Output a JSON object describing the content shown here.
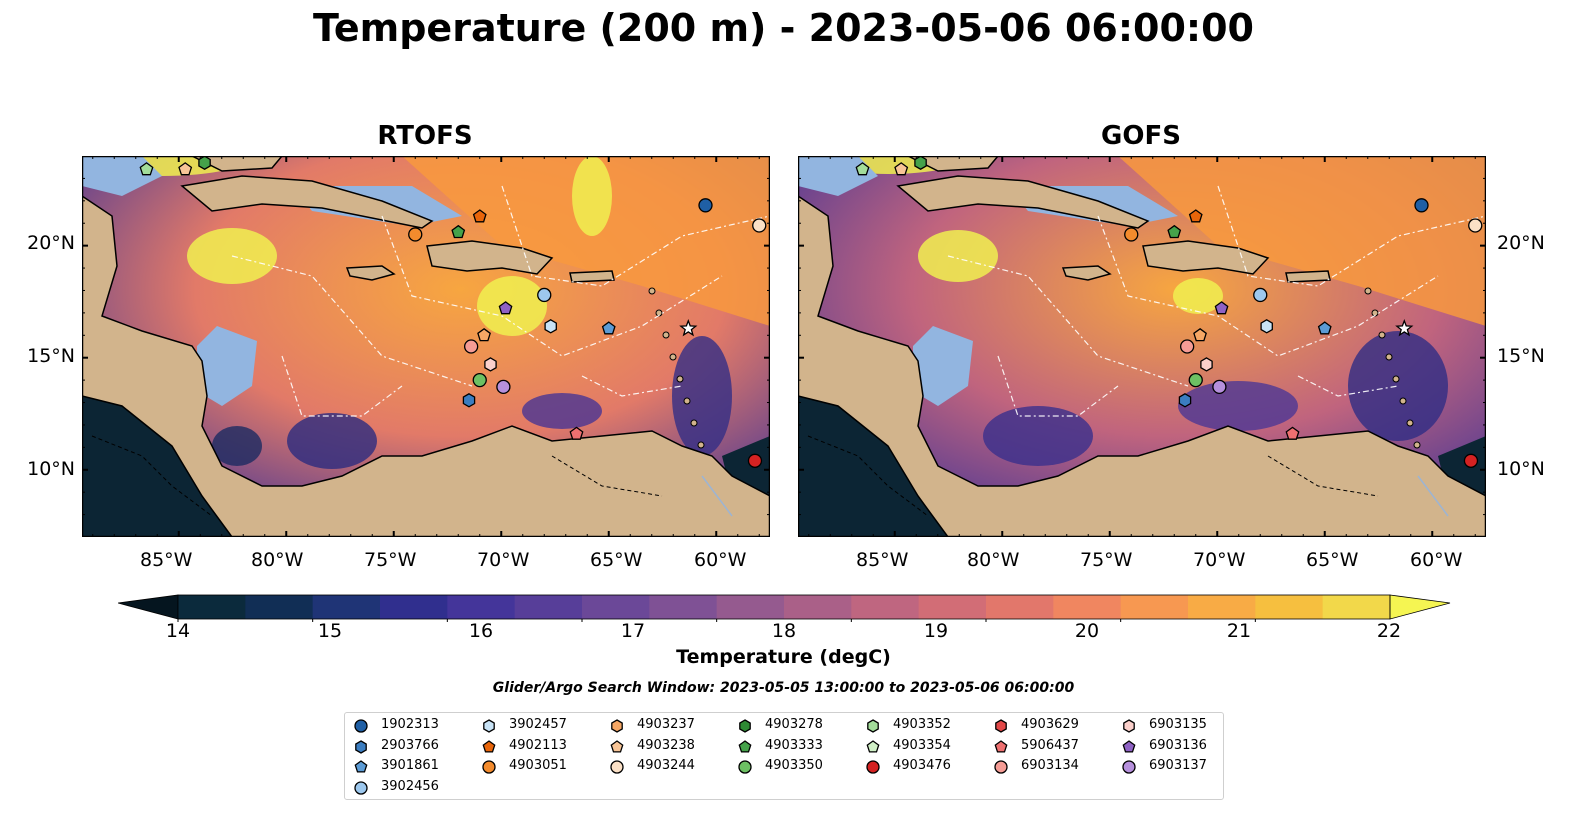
{
  "title": "Temperature (200 m) - 2023-05-06 06:00:00",
  "panels": [
    {
      "title": "RTOFS"
    },
    {
      "title": "GOFS"
    }
  ],
  "map": {
    "lon_range": [
      -89.5,
      -57.5
    ],
    "lat_range": [
      7,
      24
    ],
    "lon_ticks": [
      "85°W",
      "80°W",
      "75°W",
      "70°W",
      "65°W",
      "60°W"
    ],
    "lat_ticks": [
      "20°N",
      "15°N",
      "10°N"
    ],
    "colors": {
      "land": "#d2b48c",
      "shallow_water": "#92b5e0",
      "deep_cold": "#0c2534",
      "warm": "#f79a3b",
      "hot": "#f0f050"
    }
  },
  "colorbar": {
    "label": "Temperature (degC)",
    "ticks": [
      "14",
      "15",
      "16",
      "17",
      "18",
      "19",
      "20",
      "21",
      "22"
    ],
    "colors": [
      "#0b2a3c",
      "#112e55",
      "#1f3476",
      "#302f8e",
      "#44359a",
      "#573e99",
      "#6b4898",
      "#7f5195",
      "#955a8f",
      "#aa6088",
      "#bf6680",
      "#d26d76",
      "#e2776b",
      "#f08660",
      "#f79851",
      "#f8ab45",
      "#f6bf3f",
      "#f2d84a"
    ]
  },
  "search_window": "Glider/Argo Search Window: 2023-05-05 13:00:00 to 2023-05-06 06:00:00",
  "legend": {
    "items": [
      {
        "id": "1902313",
        "marker": "circle",
        "color": "#1f5fa5"
      },
      {
        "id": "2903766",
        "marker": "hexagon",
        "color": "#3b7dc0"
      },
      {
        "id": "3901861",
        "marker": "pentagon",
        "color": "#5b9bd5"
      },
      {
        "id": "3902456",
        "marker": "circle",
        "color": "#9dc8ee"
      },
      {
        "id": "3902457",
        "marker": "hexagon",
        "color": "#c8e3f6"
      },
      {
        "id": "4902113",
        "marker": "pentagon",
        "color": "#e8650a"
      },
      {
        "id": "4903051",
        "marker": "circle",
        "color": "#f38b2d"
      },
      {
        "id": "4903237",
        "marker": "hexagon",
        "color": "#f6a765"
      },
      {
        "id": "4903238",
        "marker": "pentagon",
        "color": "#f8c597"
      },
      {
        "id": "4903244",
        "marker": "circle",
        "color": "#fbe0c6"
      },
      {
        "id": "4903278",
        "marker": "hexagon",
        "color": "#2e8a34"
      },
      {
        "id": "4903333",
        "marker": "pentagon",
        "color": "#45a24a"
      },
      {
        "id": "4903350",
        "marker": "circle",
        "color": "#6dc063"
      },
      {
        "id": "4903352",
        "marker": "hexagon",
        "color": "#a3dc9a"
      },
      {
        "id": "4903354",
        "marker": "pentagon",
        "color": "#d0f0c6"
      },
      {
        "id": "4903476",
        "marker": "circle",
        "color": "#d52222"
      },
      {
        "id": "4903629",
        "marker": "hexagon",
        "color": "#e24848"
      },
      {
        "id": "5906437",
        "marker": "pentagon",
        "color": "#ee7070"
      },
      {
        "id": "6903134",
        "marker": "circle",
        "color": "#f59c95"
      },
      {
        "id": "6903135",
        "marker": "hexagon",
        "color": "#fbd0cb"
      },
      {
        "id": "6903136",
        "marker": "pentagon",
        "color": "#8f62c4"
      },
      {
        "id": "6903137",
        "marker": "circle",
        "color": "#b690dc"
      }
    ]
  },
  "floats": [
    {
      "lon": -86.5,
      "lat": 23.4,
      "marker": "pentagon",
      "color": "#a3dc9a"
    },
    {
      "lon": -84.7,
      "lat": 23.4,
      "marker": "pentagon",
      "color": "#f8c597"
    },
    {
      "lon": -83.8,
      "lat": 23.7,
      "marker": "hexagon",
      "color": "#45a24a"
    },
    {
      "lon": -74.0,
      "lat": 20.5,
      "marker": "circle",
      "color": "#f38b2d"
    },
    {
      "lon": -72.0,
      "lat": 20.6,
      "marker": "pentagon",
      "color": "#45a24a"
    },
    {
      "lon": -71.0,
      "lat": 21.3,
      "marker": "pentagon",
      "color": "#e8650a"
    },
    {
      "lon": -60.5,
      "lat": 21.8,
      "marker": "circle",
      "color": "#1f5fa5"
    },
    {
      "lon": -58.0,
      "lat": 20.9,
      "marker": "circle",
      "color": "#fbe0c6"
    },
    {
      "lon": -68.0,
      "lat": 17.8,
      "marker": "circle",
      "color": "#9dc8ee"
    },
    {
      "lon": -69.8,
      "lat": 17.2,
      "marker": "pentagon",
      "color": "#8f62c4"
    },
    {
      "lon": -67.7,
      "lat": 16.4,
      "marker": "hexagon",
      "color": "#c8e3f6"
    },
    {
      "lon": -65.0,
      "lat": 16.3,
      "marker": "pentagon",
      "color": "#5b9bd5"
    },
    {
      "lon": -61.3,
      "lat": 16.3,
      "marker": "star",
      "color": "#ffffff"
    },
    {
      "lon": -70.8,
      "lat": 16.0,
      "marker": "pentagon",
      "color": "#f6a765"
    },
    {
      "lon": -71.4,
      "lat": 15.5,
      "marker": "circle",
      "color": "#f59c95"
    },
    {
      "lon": -70.5,
      "lat": 14.7,
      "marker": "hexagon",
      "color": "#fbd0cb"
    },
    {
      "lon": -71.0,
      "lat": 14.0,
      "marker": "circle",
      "color": "#6dc063"
    },
    {
      "lon": -69.9,
      "lat": 13.7,
      "marker": "circle",
      "color": "#b690dc"
    },
    {
      "lon": -71.5,
      "lat": 13.1,
      "marker": "hexagon",
      "color": "#3b7dc0"
    },
    {
      "lon": -66.5,
      "lat": 11.6,
      "marker": "pentagon",
      "color": "#ee7070"
    },
    {
      "lon": -58.2,
      "lat": 10.4,
      "marker": "circle",
      "color": "#d52222"
    }
  ]
}
